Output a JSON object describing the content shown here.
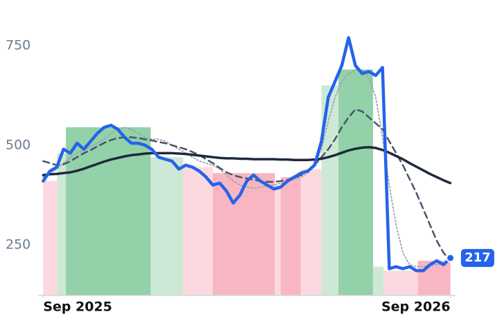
{
  "chart_data": {
    "type": "line",
    "x": [
      0,
      0.2,
      0.4,
      0.6,
      0.8,
      1,
      1.2,
      1.4,
      1.6,
      1.8,
      2,
      2.2,
      2.4,
      2.6,
      2.8,
      3,
      3.2,
      3.4,
      3.6,
      3.8,
      4,
      4.2,
      4.4,
      4.6,
      4.8,
      5,
      5.2,
      5.4,
      5.6,
      5.8,
      6,
      6.2,
      6.4,
      6.6,
      6.8,
      7,
      7.2,
      7.4,
      7.6,
      7.8,
      8,
      8.2,
      8.4,
      8.6,
      8.8,
      9,
      9.2,
      9.4,
      9.6,
      9.8,
      10,
      10.2,
      10.4,
      10.6,
      10.8,
      11,
      11.2,
      11.4,
      11.6,
      11.8,
      12
    ],
    "series": [
      {
        "color": "#9ca3af",
        "style": "dotted",
        "values": [
          420,
          430,
          440,
          455,
          470,
          480,
          488,
          497,
          505,
          515,
          530,
          540,
          545,
          540,
          530,
          520,
          515,
          515,
          510,
          500,
          490,
          480,
          470,
          460,
          455,
          450,
          440,
          425,
          410,
          400,
          395,
          392,
          395,
          398,
          400,
          405,
          410,
          415,
          420,
          430,
          450,
          490,
          560,
          620,
          660,
          680,
          690,
          690,
          670,
          620,
          520,
          400,
          300,
          230,
          200,
          195,
          195,
          198,
          200,
          205,
          210
        ]
      },
      {
        "color": "#475569",
        "style": "dashed",
        "values": [
          460,
          455,
          450,
          452,
          460,
          470,
          480,
          488,
          497,
          506,
          513,
          518,
          520,
          520,
          518,
          515,
          512,
          508,
          505,
          500,
          495,
          490,
          483,
          475,
          465,
          455,
          443,
          432,
          425,
          420,
          417,
          413,
          410,
          408,
          408,
          410,
          413,
          418,
          425,
          436,
          450,
          470,
          490,
          515,
          545,
          570,
          590,
          585,
          570,
          555,
          540,
          510,
          480,
          450,
          415,
          380,
          340,
          300,
          260,
          230,
          210
        ]
      },
      {
        "color": "#1e293b",
        "style": "solid",
        "values": [
          425,
          427,
          428,
          430,
          432,
          436,
          441,
          447,
          453,
          459,
          464,
          468,
          472,
          475,
          477,
          479,
          480,
          480,
          480,
          480,
          479,
          478,
          476,
          474,
          472,
          470,
          468,
          467,
          467,
          466,
          466,
          465,
          465,
          465,
          465,
          464,
          464,
          463,
          463,
          463,
          464,
          466,
          470,
          475,
          481,
          487,
          491,
          494,
          495,
          493,
          488,
          481,
          473,
          465,
          455,
          446,
          437,
          428,
          420,
          412,
          405
        ]
      },
      {
        "color": "#2563eb",
        "style": "main",
        "values": [
          410,
          435,
          445,
          490,
          480,
          505,
          490,
          510,
          530,
          545,
          550,
          540,
          520,
          505,
          505,
          500,
          490,
          470,
          465,
          460,
          440,
          450,
          445,
          435,
          420,
          400,
          405,
          385,
          355,
          375,
          410,
          425,
          410,
          400,
          390,
          395,
          410,
          420,
          430,
          435,
          450,
          510,
          620,
          660,
          700,
          770,
          700,
          680,
          685,
          675,
          695,
          190,
          195,
          190,
          195,
          185,
          185,
          200,
          210,
          200,
          217
        ]
      }
    ],
    "bands": [
      {
        "x0": 0,
        "x1": 0.41,
        "top": 410,
        "color": "#fcd9e0"
      },
      {
        "x0": 0.41,
        "x1": 0.67,
        "top": 480,
        "color": "#cde9d6"
      },
      {
        "x0": 0.67,
        "x1": 3.17,
        "top": 545,
        "color": "#93d1a8"
      },
      {
        "x0": 3.17,
        "x1": 4.13,
        "top": 470,
        "color": "#cde9d6"
      },
      {
        "x0": 4.13,
        "x1": 5.0,
        "top": 445,
        "color": "#fcd9e0"
      },
      {
        "x0": 5.0,
        "x1": 6.83,
        "top": 430,
        "color": "#f8b6c2"
      },
      {
        "x0": 6.83,
        "x1": 7.0,
        "top": 400,
        "color": "#fcd9e0"
      },
      {
        "x0": 7.0,
        "x1": 7.59,
        "top": 420,
        "color": "#f8b6c2"
      },
      {
        "x0": 7.59,
        "x1": 8.2,
        "top": 440,
        "color": "#fcd9e0"
      },
      {
        "x0": 8.2,
        "x1": 8.7,
        "top": 650,
        "color": "#cde9d6"
      },
      {
        "x0": 8.7,
        "x1": 9.72,
        "top": 690,
        "color": "#93d1a8"
      },
      {
        "x0": 9.72,
        "x1": 10.03,
        "top": 195,
        "color": "#cde9d6"
      },
      {
        "x0": 10.03,
        "x1": 11.04,
        "top": 185,
        "color": "#fcd9e0"
      },
      {
        "x0": 11.04,
        "x1": 12.0,
        "top": 210,
        "color": "#f8b6c2"
      }
    ],
    "xlim": [
      -0.15,
      12.15
    ],
    "xticks": [
      {
        "value": 0,
        "label": "Sep 2025"
      },
      {
        "value": 12,
        "label": "Sep 2026"
      }
    ],
    "ylim": [
      123,
      802
    ],
    "yticks": [
      250,
      500,
      750
    ]
  }
}
